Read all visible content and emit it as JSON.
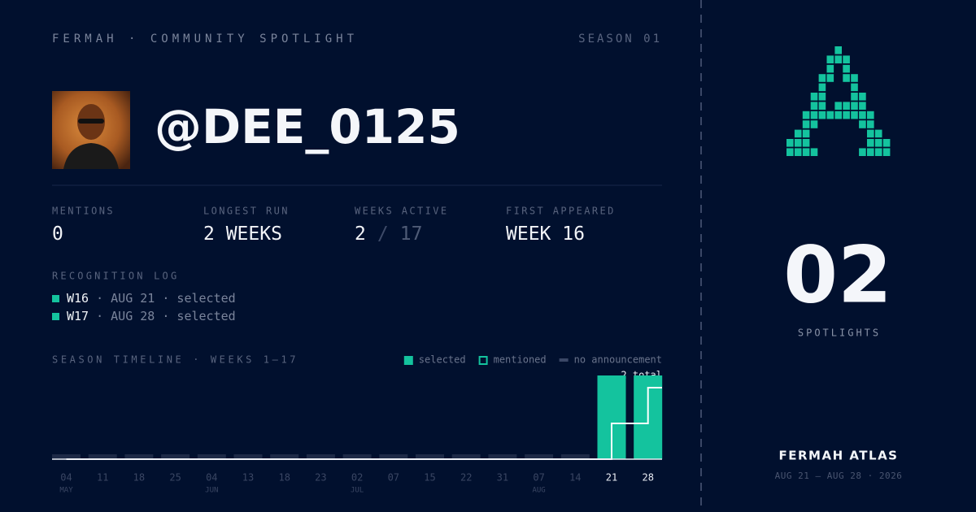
{
  "header": {
    "brand": "FERMAH · COMMUNITY SPOTLIGHT",
    "season": "SEASON 01"
  },
  "profile": {
    "handle": "@DEE_0125"
  },
  "stats": [
    {
      "label": "MENTIONS",
      "value": "0"
    },
    {
      "label": "LONGEST RUN",
      "value": "2 WEEKS"
    },
    {
      "label": "WEEKS ACTIVE",
      "value": "2",
      "divider": "/",
      "total": "17"
    },
    {
      "label": "FIRST APPEARED",
      "value": "WEEK 16"
    }
  ],
  "log": {
    "title": "RECOGNITION LOG",
    "entries": [
      {
        "week": "W16",
        "detail": "· AUG 21 · selected"
      },
      {
        "week": "W17",
        "detail": "· AUG 28 · selected"
      }
    ]
  },
  "timeline": {
    "title": "SEASON TIMELINE · WEEKS 1–17",
    "legend": [
      {
        "name": "selected",
        "style": "filled"
      },
      {
        "name": "mentioned",
        "style": "outline"
      },
      {
        "name": "no announcement",
        "style": "dash"
      }
    ],
    "total_label": "2 total",
    "categories": [
      "04",
      "11",
      "18",
      "25",
      "04",
      "13",
      "18",
      "23",
      "02",
      "07",
      "15",
      "22",
      "31",
      "07",
      "14",
      "21",
      "28"
    ],
    "months": [
      "MAY",
      null,
      null,
      null,
      "JUN",
      null,
      null,
      null,
      "JUL",
      null,
      null,
      null,
      null,
      "AUG",
      null,
      null,
      null
    ],
    "series": [
      {
        "name": "selected",
        "color": "#14c39e",
        "values": [
          0,
          0,
          0,
          0,
          0,
          0,
          0,
          0,
          0,
          0,
          0,
          0,
          0,
          0,
          0,
          1,
          1
        ]
      },
      {
        "color": "#ffffff",
        "axis": "y2",
        "values": [
          0,
          0,
          0,
          0,
          0,
          0,
          0,
          0,
          0,
          0,
          0,
          0,
          0,
          0,
          0,
          1,
          2
        ]
      }
    ],
    "ylim": [
      0,
      1
    ],
    "y2lim": [
      0,
      2.34
    ],
    "empty_color": "#1e2a47"
  },
  "side": {
    "count": "02",
    "count_label": "SPOTLIGHTS",
    "footer_title": "FERMAH ATLAS",
    "footer_range": "AUG 21 — AUG 28 · 2026"
  }
}
